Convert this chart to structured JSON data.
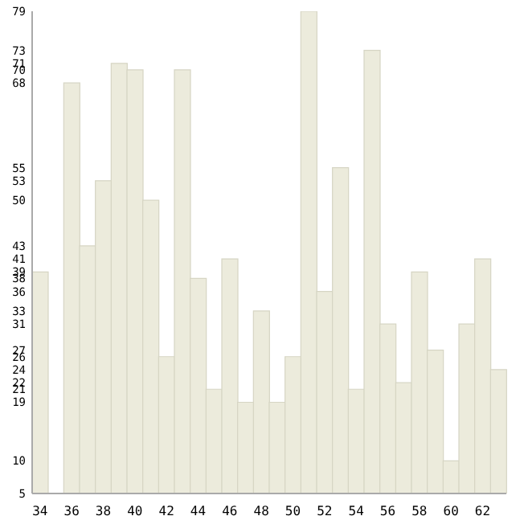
{
  "chart_data": {
    "type": "bar",
    "categories": [
      "34",
      null,
      "36",
      null,
      "38",
      null,
      "40",
      null,
      "42",
      null,
      "44",
      null,
      "46",
      null,
      "48",
      null,
      "50",
      null,
      "52",
      null,
      "54",
      null,
      "56",
      null,
      "58",
      null,
      "60",
      null,
      "62",
      null
    ],
    "values": [
      39,
      5,
      68,
      43,
      53,
      71,
      70,
      50,
      26,
      70,
      38,
      21,
      41,
      19,
      33,
      19,
      26,
      79,
      36,
      55,
      21,
      73,
      31,
      22,
      39,
      27,
      10,
      31,
      41,
      24
    ],
    "color": "#ecebdc",
    "ylim": [
      5,
      79
    ],
    "yticks": [
      5,
      10,
      19,
      21,
      22,
      24,
      26,
      27,
      31,
      33,
      36,
      38,
      39,
      41,
      43,
      50,
      53,
      55,
      68,
      70,
      71,
      73,
      79
    ],
    "grid": false,
    "legend": false
  }
}
